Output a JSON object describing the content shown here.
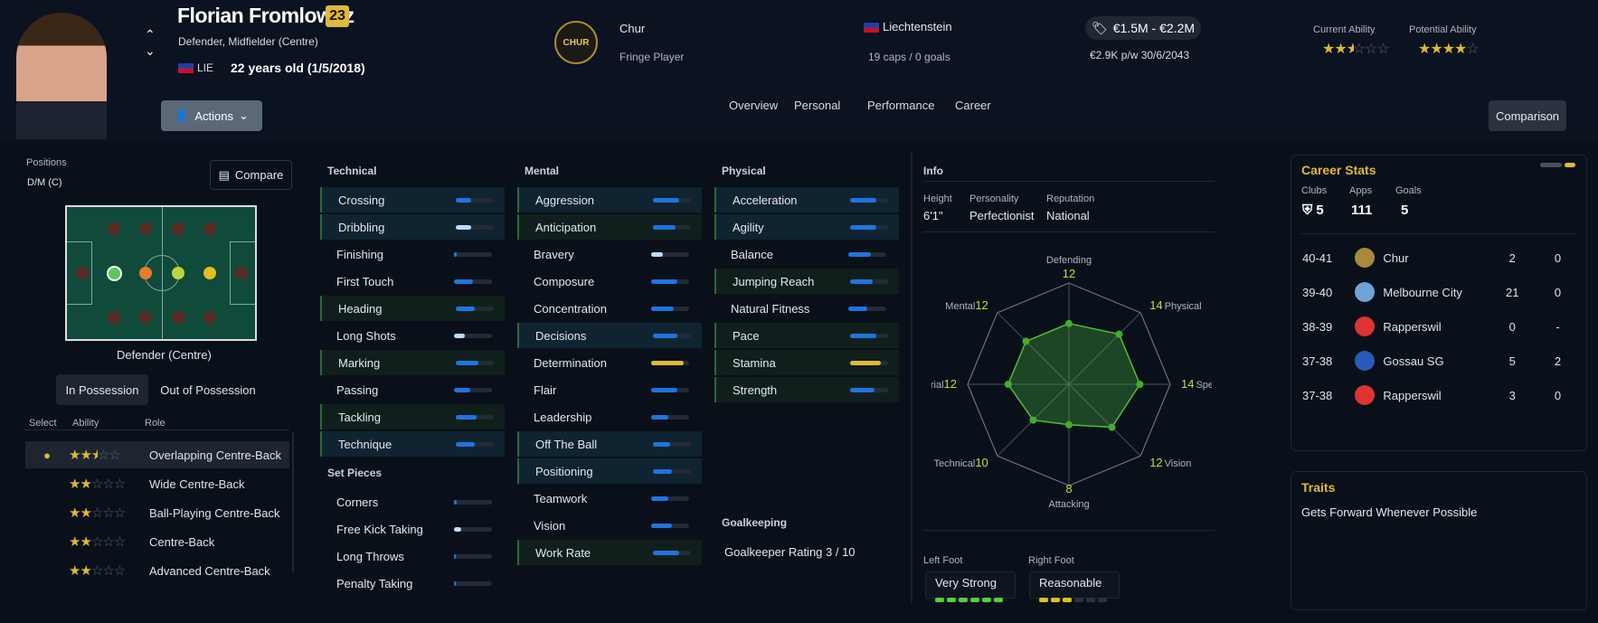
{
  "player": {
    "name": "Florian Fromlowitz",
    "badge": "23",
    "positions": "Defender, Midfielder (Centre)",
    "nation_code": "LIE",
    "age": "22 years old (1/5/2018)"
  },
  "header": {
    "actions_label": "Actions",
    "club": "Chur",
    "club_crest_text": "CHUR",
    "squad_status": "Fringe Player",
    "nation": "Liechtenstein",
    "caps": "19 caps / 0 goals",
    "value": "€1.5M - €2.2M",
    "wage": "€2.9K p/w 30/6/2043",
    "current_ability_label": "Current Ability",
    "potential_ability_label": "Potential Ability",
    "current_ability_stars": 2.5,
    "potential_ability_stars": 4,
    "comparison_label": "Comparison"
  },
  "nav": [
    "Overview",
    "Personal",
    "Performance",
    "Career"
  ],
  "left": {
    "positions_label": "Positions",
    "positions_value": "D/M (C)",
    "compare_label": "Compare",
    "pitch_caption": "Defender (Centre)",
    "tab_in": "In Possession",
    "tab_out": "Out of Possession",
    "col_select": "Select",
    "col_ability": "Ability",
    "col_role": "Role",
    "roles": [
      {
        "name": "Overlapping Centre-Back",
        "stars": 2.5,
        "selected": true
      },
      {
        "name": "Wide Centre-Back",
        "stars": 2
      },
      {
        "name": "Ball-Playing Centre-Back",
        "stars": 2
      },
      {
        "name": "Centre-Back",
        "stars": 2
      },
      {
        "name": "Advanced Centre-Back",
        "stars": 2
      }
    ]
  },
  "technical": {
    "title": "Technical",
    "items": [
      {
        "name": "Crossing",
        "v": 0.4,
        "hl": 1
      },
      {
        "name": "Dribbling",
        "v": 0.4,
        "light": 1,
        "hl": 1
      },
      {
        "name": "Finishing",
        "v": 0.08,
        "hl": 0
      },
      {
        "name": "First Touch",
        "v": 0.5,
        "hl": 0
      },
      {
        "name": "Heading",
        "v": 0.5,
        "hl": 2
      },
      {
        "name": "Long Shots",
        "v": 0.28,
        "light": 1,
        "hl": 0
      },
      {
        "name": "Marking",
        "v": 0.6,
        "hl": 2
      },
      {
        "name": "Passing",
        "v": 0.42,
        "hl": 0
      },
      {
        "name": "Tackling",
        "v": 0.55,
        "hl": 2
      },
      {
        "name": "Technique",
        "v": 0.5,
        "hl": 1
      }
    ]
  },
  "set_pieces": {
    "title": "Set Pieces",
    "items": [
      {
        "name": "Corners",
        "v": 0.08
      },
      {
        "name": "Free Kick Taking",
        "v": 0.2,
        "light": 1
      },
      {
        "name": "Long Throws",
        "v": 0.04
      },
      {
        "name": "Penalty Taking",
        "v": 0.04
      }
    ]
  },
  "mental": {
    "title": "Mental",
    "items": [
      {
        "name": "Aggression",
        "v": 0.7,
        "hl": 1
      },
      {
        "name": "Anticipation",
        "v": 0.6,
        "hl": 2
      },
      {
        "name": "Bravery",
        "v": 0.3,
        "light": 1,
        "hl": 0
      },
      {
        "name": "Composure",
        "v": 0.7,
        "hl": 0
      },
      {
        "name": "Concentration",
        "v": 0.6,
        "hl": 0
      },
      {
        "name": "Decisions",
        "v": 0.65,
        "hl": 1
      },
      {
        "name": "Determination",
        "v": 0.85,
        "yellow": 1,
        "hl": 0
      },
      {
        "name": "Flair",
        "v": 0.7,
        "hl": 0
      },
      {
        "name": "Leadership",
        "v": 0.45,
        "hl": 0
      },
      {
        "name": "Off The Ball",
        "v": 0.45,
        "hl": 1
      },
      {
        "name": "Positioning",
        "v": 0.5,
        "hl": 1
      },
      {
        "name": "Teamwork",
        "v": 0.45,
        "hl": 0
      },
      {
        "name": "Vision",
        "v": 0.55,
        "hl": 0
      },
      {
        "name": "Work Rate",
        "v": 0.7,
        "hl": 2
      }
    ]
  },
  "physical": {
    "title": "Physical",
    "items": [
      {
        "name": "Acceleration",
        "v": 0.7,
        "hl": 1
      },
      {
        "name": "Agility",
        "v": 0.7,
        "hl": 1
      },
      {
        "name": "Balance",
        "v": 0.6,
        "hl": 0
      },
      {
        "name": "Jumping Reach",
        "v": 0.6,
        "hl": 2
      },
      {
        "name": "Natural Fitness",
        "v": 0.5,
        "hl": 0
      },
      {
        "name": "Pace",
        "v": 0.7,
        "hl": 2
      },
      {
        "name": "Stamina",
        "v": 0.8,
        "yellow": 1,
        "hl": 2
      },
      {
        "name": "Strength",
        "v": 0.65,
        "hl": 2
      }
    ]
  },
  "goalkeeping": {
    "title": "Goalkeeping",
    "rating": "Goalkeeper Rating 3 / 10"
  },
  "info": {
    "title": "Info",
    "height_label": "Height",
    "height": "6'1\"",
    "personality_label": "Personality",
    "personality": "Perfectionist",
    "reputation_label": "Reputation",
    "reputation": "National",
    "radar": [
      {
        "label": "Defending",
        "value": "12"
      },
      {
        "label": "Physical",
        "value": "14"
      },
      {
        "label": "Speed",
        "value": "14"
      },
      {
        "label": "Vision",
        "value": "12"
      },
      {
        "label": "Attacking",
        "value": "8"
      },
      {
        "label": "Technical",
        "value": "10"
      },
      {
        "label": "Aerial",
        "value": "12"
      },
      {
        "label": "Mental",
        "value": "12"
      }
    ],
    "left_foot_label": "Left Foot",
    "left_foot": "Very Strong",
    "left_foot_level": 6,
    "right_foot_label": "Right Foot",
    "right_foot": "Reasonable",
    "right_foot_level": 3
  },
  "career": {
    "title": "Career Stats",
    "clubs_label": "Clubs",
    "clubs": "5",
    "apps_label": "Apps",
    "apps": "111",
    "goals_label": "Goals",
    "goals": "5",
    "rows": [
      {
        "season": "40-41",
        "club": "Chur",
        "apps": "2",
        "goals": "0",
        "color": "#a88a3a"
      },
      {
        "season": "39-40",
        "club": "Melbourne City",
        "apps": "21",
        "goals": "0",
        "color": "#6fa3d8"
      },
      {
        "season": "38-39",
        "club": "Rapperswil",
        "apps": "0",
        "goals": "-",
        "color": "#d33"
      },
      {
        "season": "37-38",
        "club": "Gossau SG",
        "apps": "5",
        "goals": "2",
        "color": "#2a5ab8"
      },
      {
        "season": "37-38",
        "club": "Rapperswil",
        "apps": "3",
        "goals": "0",
        "color": "#d33"
      }
    ]
  },
  "traits": {
    "title": "Traits",
    "text": "Gets Forward Whenever Possible"
  }
}
